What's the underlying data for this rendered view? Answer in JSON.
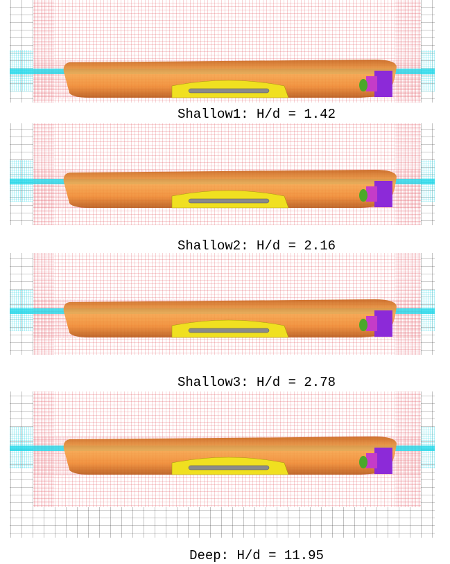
{
  "panels": [
    {
      "caption": "Shallow1: H/d = 1.42"
    },
    {
      "caption": "Shallow2: H/d = 2.16"
    },
    {
      "caption": "Shallow3: H/d = 2.78"
    },
    {
      "caption": "Deep: H/d = 11.95"
    }
  ]
}
